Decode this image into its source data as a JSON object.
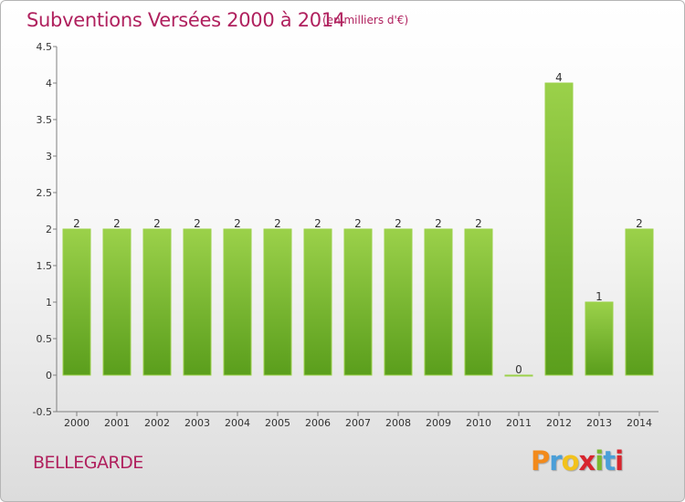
{
  "header": {
    "title": "Subventions Versées 2000 à 2014",
    "subtitle": "(en milliers d'€)"
  },
  "footer": {
    "city": "BELLEGARDE",
    "logo": [
      "P",
      "r",
      "o",
      "x",
      "i",
      "t",
      "i"
    ],
    "logo_colors": [
      "#f28a1c",
      "#4a9fd8",
      "#f2c21c",
      "#d8252e",
      "#7cb82f",
      "#4a9fd8",
      "#d8252e"
    ]
  },
  "colors": {
    "title": "#b0215e",
    "bar_top": "#9bd14a",
    "bar_bottom": "#5a9e1c",
    "axis": "#7f7f7f",
    "grid": "#e2e2e2"
  },
  "chart_data": {
    "type": "bar",
    "categories": [
      "2000",
      "2001",
      "2002",
      "2003",
      "2004",
      "2005",
      "2006",
      "2007",
      "2008",
      "2009",
      "2010",
      "2011",
      "2012",
      "2013",
      "2014"
    ],
    "values": [
      2,
      2,
      2,
      2,
      2,
      2,
      2,
      2,
      2,
      2,
      2,
      0,
      4,
      1,
      2
    ],
    "data_labels": [
      "2",
      "2",
      "2",
      "2",
      "2",
      "2",
      "2",
      "2",
      "2",
      "2",
      "2",
      "0",
      "4",
      "1",
      "2"
    ],
    "ylim": [
      -0.5,
      4.5
    ],
    "yticks": [
      -0.5,
      0,
      0.5,
      1,
      1.5,
      2,
      2.5,
      3,
      3.5,
      4,
      4.5
    ],
    "ytick_labels": [
      "-0.5",
      "0",
      "0.5",
      "1",
      "1.5",
      "2",
      "2.5",
      "3",
      "3.5",
      "4",
      "4.5"
    ],
    "title": "Subventions Versées 2000 à 2014",
    "xlabel": "",
    "ylabel": "",
    "grid": false
  }
}
